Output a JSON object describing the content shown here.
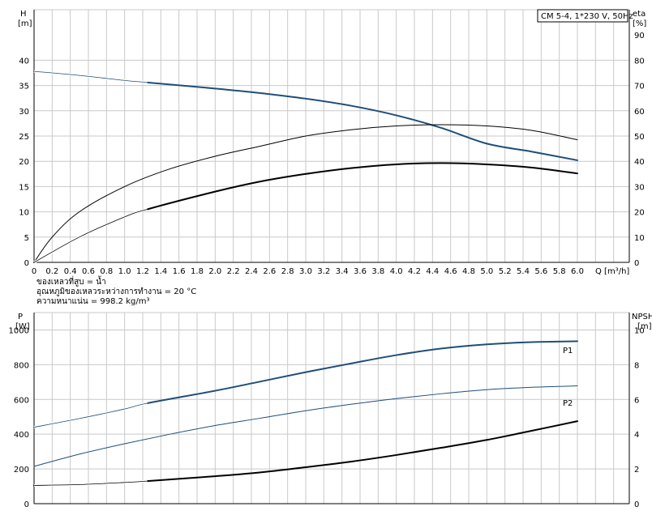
{
  "chart_data": [
    {
      "type": "line",
      "id": "top",
      "legend_box": "CM 5-4, 1*230 V, 50Hz",
      "x_label": "Q [m³/h]",
      "xlim": [
        0,
        6.0
      ],
      "x_ticks": [
        0,
        0.2,
        0.4,
        0.6,
        0.8,
        1.0,
        1.2,
        1.4,
        1.6,
        1.8,
        2.0,
        2.2,
        2.4,
        2.6,
        2.8,
        3.0,
        3.2,
        3.4,
        3.6,
        3.8,
        4.0,
        4.2,
        4.4,
        4.6,
        4.8,
        5.0,
        5.2,
        5.4,
        5.6,
        5.8,
        6.0
      ],
      "y_left": {
        "label_line1": "H",
        "label_line2": "[m]",
        "range": [
          0,
          50
        ],
        "ticks": [
          0,
          5,
          10,
          15,
          20,
          25,
          30,
          35,
          40
        ]
      },
      "y_right": {
        "label_line1": "eta",
        "label_line2": "[%]",
        "range": [
          0,
          100
        ],
        "ticks": [
          0,
          10,
          20,
          30,
          40,
          50,
          60,
          70,
          80,
          90
        ]
      },
      "notes": [
        "ของเหลวที่สูบ = น้ำ",
        "อุณหภูมิของเหลวระหว่างการทำงาน = 20 °C",
        "ความหนาแน่น = 998.2 kg/m³"
      ],
      "series": [
        {
          "axis": "left",
          "color": "#1f4e79",
          "width": 2,
          "x": [
            0,
            0.5,
            1.0,
            1.25,
            2.0,
            2.5,
            3.0,
            3.5,
            4.0,
            4.5,
            5.0,
            5.5,
            6.0
          ],
          "y": [
            37.8,
            37.0,
            36.0,
            35.6,
            34.4,
            33.5,
            32.4,
            31.0,
            29.1,
            26.6,
            23.5,
            21.9,
            20.2
          ],
          "dash_until": 1.25
        },
        {
          "axis": "right",
          "color": "#000000",
          "width": 1,
          "x": [
            0,
            0.2,
            0.5,
            1.0,
            1.5,
            2.0,
            2.5,
            3.0,
            3.5,
            4.0,
            4.5,
            5.0,
            5.5,
            6.0
          ],
          "y": [
            0,
            10,
            20,
            30,
            37,
            42,
            46,
            50,
            52.5,
            54,
            54.5,
            54,
            52.2,
            48.5
          ]
        },
        {
          "axis": "right",
          "color": "#000000",
          "width": 2,
          "x": [
            0,
            0.5,
            1.0,
            1.25,
            2.0,
            2.5,
            3.0,
            3.5,
            4.0,
            4.5,
            5.0,
            5.5,
            6.0
          ],
          "y": [
            0,
            10,
            18,
            21,
            28,
            32,
            35,
            37.3,
            38.8,
            39.3,
            38.8,
            37.5,
            35.2
          ],
          "dash_until": 1.25
        }
      ]
    },
    {
      "type": "line",
      "id": "bottom",
      "xlim": [
        0,
        6.0
      ],
      "y_left": {
        "label_line1": "P",
        "label_line2": "[W]",
        "range": [
          0,
          1100
        ],
        "ticks": [
          0,
          200,
          400,
          600,
          800,
          1000
        ]
      },
      "y_right": {
        "label_line1": "NPSH",
        "label_line2": "[m]",
        "range": [
          0,
          11
        ],
        "ticks": [
          0,
          2,
          4,
          6,
          8,
          10
        ]
      },
      "series": [
        {
          "name": "P1",
          "axis": "left",
          "color": "#1f4e79",
          "width": 2,
          "x": [
            0,
            0.5,
            1.0,
            1.25,
            2.0,
            2.5,
            3.0,
            3.5,
            4.0,
            4.5,
            5.0,
            5.5,
            6.0
          ],
          "y": [
            440,
            490,
            545,
            578,
            650,
            703,
            757,
            807,
            855,
            893,
            917,
            930,
            935
          ],
          "dash_until": 1.25
        },
        {
          "name": "P2",
          "axis": "left",
          "color": "#1f4e79",
          "width": 1,
          "x": [
            0,
            0.5,
            1.0,
            1.5,
            2.0,
            2.5,
            3.0,
            3.5,
            4.0,
            4.5,
            5.0,
            5.5,
            6.0
          ],
          "y": [
            215,
            285,
            345,
            400,
            450,
            492,
            535,
            572,
            605,
            633,
            656,
            670,
            678
          ]
        },
        {
          "axis": "right",
          "color": "#000000",
          "width": 2,
          "x": [
            0,
            0.5,
            1.0,
            1.25,
            2.0,
            2.5,
            3.0,
            3.5,
            4.0,
            4.5,
            5.0,
            5.5,
            6.0
          ],
          "y": [
            1.05,
            1.1,
            1.22,
            1.3,
            1.58,
            1.8,
            2.1,
            2.42,
            2.8,
            3.22,
            3.67,
            4.2,
            4.75
          ],
          "dash_until": 1.25
        }
      ]
    }
  ]
}
